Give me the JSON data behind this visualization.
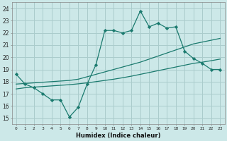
{
  "xlabel": "Humidex (Indice chaleur)",
  "bg_color": "#cce8e8",
  "grid_color": "#aacccc",
  "line_color": "#1a7a6e",
  "xlim": [
    -0.5,
    23.5
  ],
  "ylim": [
    14.5,
    24.5
  ],
  "yticks": [
    15,
    16,
    17,
    18,
    19,
    20,
    21,
    22,
    23,
    24
  ],
  "xticks": [
    0,
    1,
    2,
    3,
    4,
    5,
    6,
    7,
    8,
    9,
    10,
    11,
    12,
    13,
    14,
    15,
    16,
    17,
    18,
    19,
    20,
    21,
    22,
    23
  ],
  "xtick_labels": [
    "0",
    "1",
    "2",
    "3",
    "4",
    "5",
    "6",
    "7",
    "8",
    "9",
    "10",
    "11",
    "12",
    "13",
    "14",
    "15",
    "16",
    "17",
    "18",
    "19",
    "20",
    "21",
    "22",
    "23"
  ],
  "series1_x": [
    0,
    1,
    2,
    3,
    4,
    5,
    6,
    7,
    8,
    9,
    10,
    11,
    12,
    13,
    14,
    15,
    16,
    17,
    18,
    19,
    20,
    21,
    22,
    23
  ],
  "series1_y": [
    18.6,
    17.8,
    17.5,
    17.0,
    16.5,
    16.5,
    15.1,
    15.9,
    17.8,
    19.4,
    22.2,
    22.2,
    22.0,
    22.2,
    23.8,
    22.5,
    22.8,
    22.4,
    22.5,
    20.5,
    19.9,
    19.5,
    19.0,
    19.0
  ],
  "series2_x": [
    0,
    1,
    2,
    3,
    4,
    5,
    6,
    7,
    8,
    9,
    10,
    11,
    12,
    13,
    14,
    15,
    16,
    17,
    18,
    19,
    20,
    21,
    22,
    23
  ],
  "series2_y": [
    17.8,
    17.85,
    17.9,
    17.95,
    18.0,
    18.05,
    18.1,
    18.2,
    18.4,
    18.6,
    18.8,
    19.0,
    19.2,
    19.4,
    19.6,
    19.85,
    20.1,
    20.35,
    20.6,
    20.85,
    21.1,
    21.25,
    21.4,
    21.55
  ],
  "series3_x": [
    0,
    1,
    2,
    3,
    4,
    5,
    6,
    7,
    8,
    9,
    10,
    11,
    12,
    13,
    14,
    15,
    16,
    17,
    18,
    19,
    20,
    21,
    22,
    23
  ],
  "series3_y": [
    17.4,
    17.5,
    17.55,
    17.6,
    17.65,
    17.7,
    17.75,
    17.82,
    17.9,
    18.0,
    18.1,
    18.2,
    18.32,
    18.45,
    18.6,
    18.75,
    18.9,
    19.05,
    19.2,
    19.35,
    19.5,
    19.6,
    19.72,
    19.85
  ]
}
